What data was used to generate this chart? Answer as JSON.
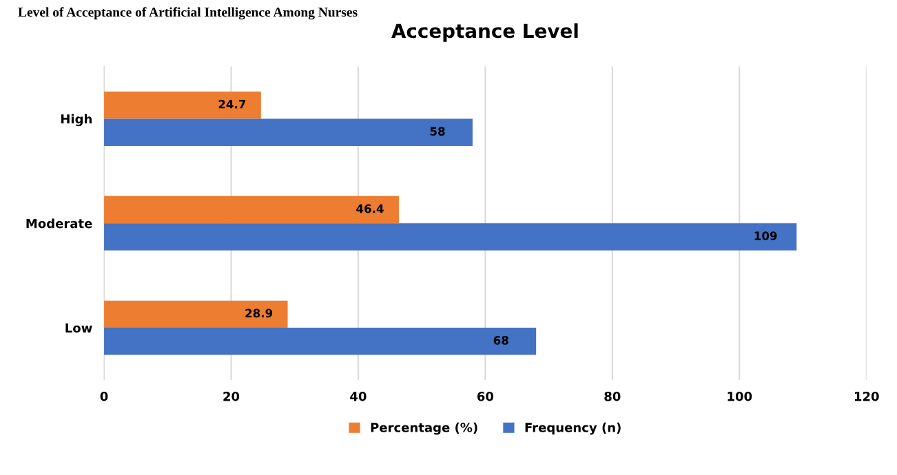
{
  "chart_data": {
    "type": "bar",
    "orientation": "horizontal",
    "title": "Acceptance Level",
    "annotations": [
      "Level of Acceptance of Artificial Intelligence Among Nurses"
    ],
    "categories": [
      "High",
      "Moderate",
      "Low"
    ],
    "series": [
      {
        "name": "Percentage (%)",
        "color": "#ed7d31",
        "values": [
          24.7,
          46.4,
          28.9
        ]
      },
      {
        "name": "Frequency (n)",
        "color": "#4472c4",
        "values": [
          58,
          109,
          68
        ]
      }
    ],
    "xlim": [
      0,
      120
    ],
    "xticks": [
      0,
      20,
      40,
      60,
      80,
      100,
      120
    ],
    "grid": "x",
    "legend": "bottom",
    "data_labels": true
  }
}
